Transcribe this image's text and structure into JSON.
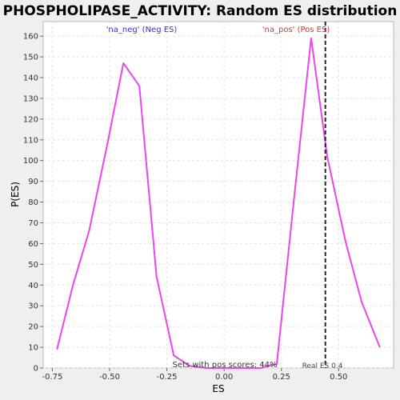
{
  "chart_data": {
    "type": "line",
    "title": "PHOSPHOLIPASE_ACTIVITY: Random ES distribution",
    "xlabel": "ES",
    "ylabel": "P(ES)",
    "xlim": [
      -0.79,
      0.74
    ],
    "ylim": [
      0,
      167
    ],
    "x_ticks": [
      -0.75,
      -0.5,
      -0.25,
      0.0,
      0.25,
      0.5
    ],
    "x_tick_labels": [
      "-0.75",
      "-0.50",
      "-0.25",
      "0.00",
      "0.25",
      "0.50"
    ],
    "y_ticks": [
      0,
      10,
      20,
      30,
      40,
      50,
      60,
      70,
      80,
      90,
      100,
      110,
      120,
      130,
      140,
      150,
      160
    ],
    "grid": true,
    "series": [
      {
        "color": "#ee44ee",
        "x": [
          -0.73,
          -0.66,
          -0.59,
          -0.51,
          -0.44,
          -0.37,
          -0.295,
          -0.22,
          -0.15,
          -0.08,
          0.0,
          0.08,
          0.16,
          0.23,
          0.3,
          0.38,
          0.45,
          0.53,
          0.6,
          0.68
        ],
        "y": [
          9,
          40,
          66,
          108,
          147,
          136,
          44,
          6,
          1,
          0,
          0,
          0,
          0,
          2,
          76,
          159,
          102,
          61,
          32,
          10
        ]
      }
    ],
    "real_es": 0.442,
    "annotations": {
      "neg_label": "'na_neg' (Neg ES)",
      "pos_label": "'na_pos' (Pos ES)",
      "pos_scores": "Sets with pos scores: 44%",
      "real_es_label": "Real ES 0.4"
    }
  }
}
